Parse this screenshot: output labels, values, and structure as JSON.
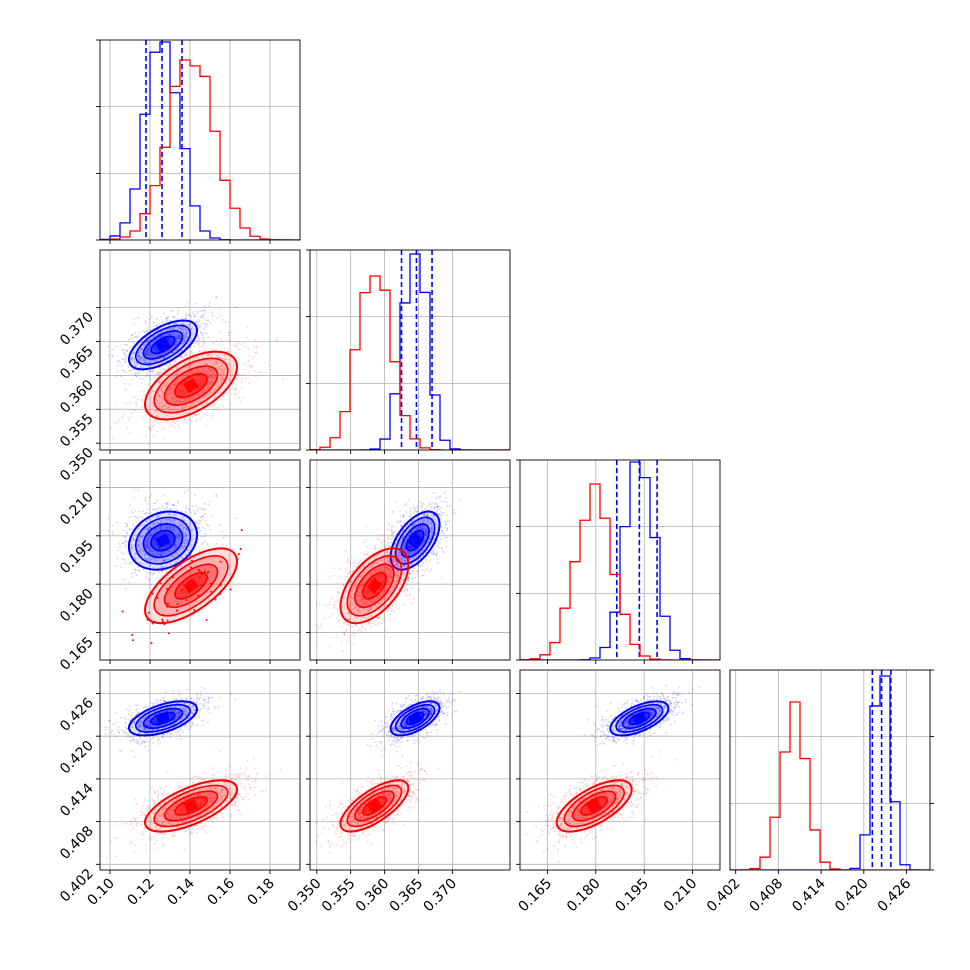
{
  "colors": {
    "blue": "#0000ff",
    "red": "#ff0000",
    "grid": "#b0b0b0",
    "axis": "#000000"
  },
  "chart_data": {
    "type": "corner",
    "grid": true,
    "params": [
      {
        "xlim": [
          0.095,
          0.195
        ],
        "ticks": [
          0.1,
          0.12,
          0.14,
          0.16,
          0.18
        ],
        "tick_labels": [
          "0.10",
          "0.12",
          "0.14",
          "0.16",
          "0.18"
        ]
      },
      {
        "xlim": [
          0.349,
          0.3785
        ],
        "ticks": [
          0.35,
          0.355,
          0.36,
          0.365,
          0.37
        ],
        "tick_labels": [
          "0.350",
          "0.355",
          "0.360",
          "0.365",
          "0.370"
        ]
      },
      {
        "xlim": [
          0.1565,
          0.2185
        ],
        "ticks": [
          0.165,
          0.18,
          0.195,
          0.21
        ],
        "tick_labels": [
          "0.165",
          "0.180",
          "0.195",
          "0.210"
        ]
      },
      {
        "xlim": [
          0.4012,
          0.4293
        ],
        "ticks": [
          0.402,
          0.408,
          0.414,
          0.42,
          0.426
        ],
        "tick_labels": [
          "0.402",
          "0.408",
          "0.414",
          "0.420",
          "0.426"
        ]
      }
    ],
    "row_tick_labels": {
      "1": [
        "0.350",
        "0.355",
        "0.360",
        "0.365",
        "0.370"
      ],
      "2": [
        "0.165",
        "0.180",
        "0.195",
        "0.210"
      ],
      "3": [
        "0.402",
        "0.408",
        "0.414",
        "0.420",
        "0.426"
      ]
    },
    "series": [
      {
        "color": "blue",
        "mean": [
          0.1265,
          0.3645,
          0.1935,
          0.4225
        ],
        "sd": [
          0.0085,
          0.0018,
          0.0045,
          0.0012
        ],
        "corr": [
          [
            0,
            1,
            0.6
          ],
          [
            0,
            2,
            0.2
          ],
          [
            0,
            3,
            0.55
          ],
          [
            1,
            2,
            0.55
          ],
          [
            1,
            3,
            0.6
          ],
          [
            2,
            3,
            0.6
          ]
        ],
        "quantiles": [
          [
            0.118,
            0.126,
            0.136
          ],
          [
            0.3625,
            0.3647,
            0.367
          ],
          [
            0.1865,
            0.1935,
            0.199
          ],
          [
            0.4212,
            0.4225,
            0.4238
          ]
        ],
        "hist_peak_frac": [
          0.99,
          0.98,
          0.99,
          0.97
        ]
      },
      {
        "color": "red",
        "mean": [
          0.1405,
          0.3585,
          0.1795,
          0.4102
        ],
        "sd": [
          0.0115,
          0.0025,
          0.0058,
          0.0018
        ],
        "corr": [
          [
            0,
            1,
            0.55
          ],
          [
            0,
            2,
            0.65
          ],
          [
            0,
            3,
            0.65
          ],
          [
            1,
            2,
            0.55
          ],
          [
            1,
            3,
            0.7
          ],
          [
            2,
            3,
            0.65
          ]
        ],
        "hist_peak_frac": [
          0.9,
          0.87,
          0.88,
          0.84
        ]
      }
    ]
  }
}
